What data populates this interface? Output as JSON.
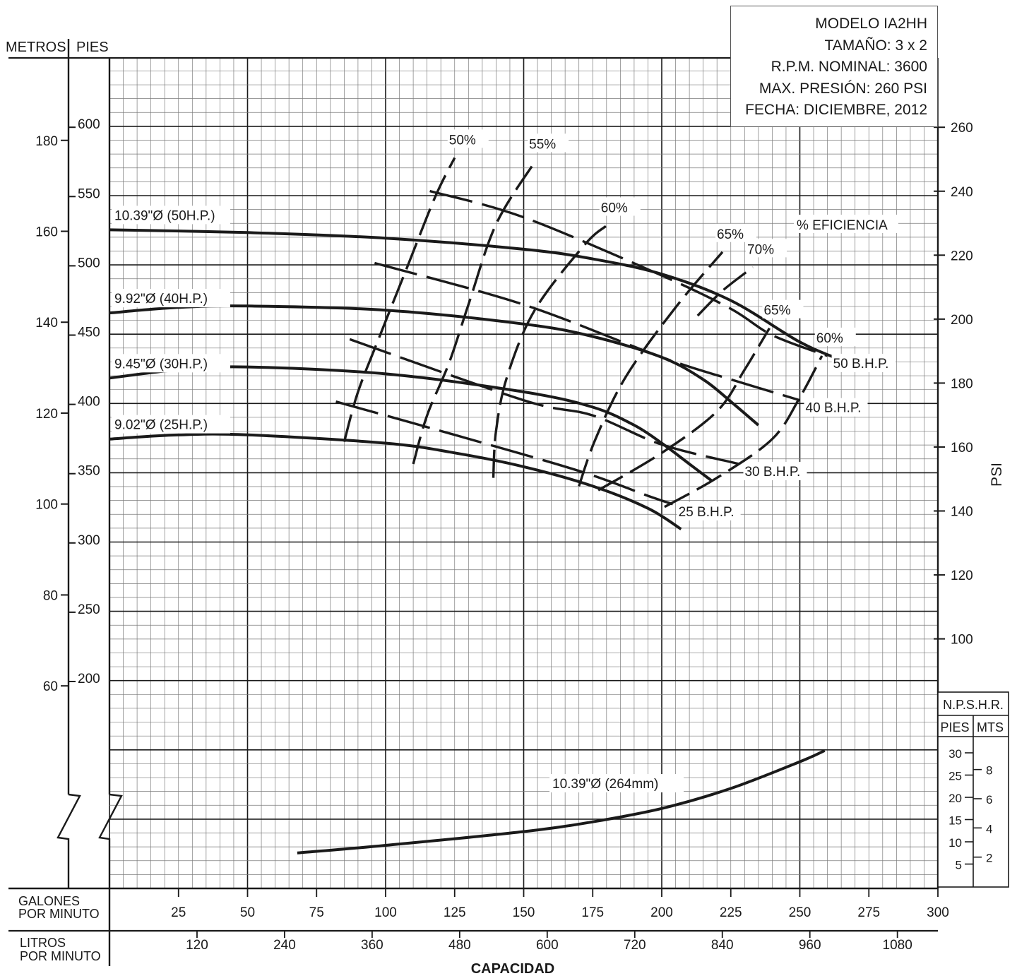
{
  "info": {
    "lines": [
      "MODELO IA2HH",
      "TAMAÑO: 3 x 2",
      "R.P.M. NOMINAL: 3600",
      "MAX. PRESIÓN: 260 PSI",
      "FECHA: DICIEMBRE, 2012"
    ]
  },
  "axes": {
    "metros_label": "METROS",
    "pies_label": "PIES",
    "psi_label": "PSI",
    "gpm_label": [
      "GALONES",
      "POR MINUTO"
    ],
    "lpm_label": [
      "LITROS",
      "POR MINUTO"
    ],
    "capacidad_label": "CAPACIDAD",
    "metros_ticks": [
      "180",
      "160",
      "140",
      "120",
      "100",
      "80",
      "60"
    ],
    "pies_ticks": [
      "600",
      "550",
      "500",
      "450",
      "400",
      "350",
      "300",
      "250",
      "200"
    ],
    "psi_ticks": [
      "260",
      "240",
      "220",
      "200",
      "180",
      "160",
      "140",
      "120",
      "100"
    ],
    "gpm_ticks": [
      "25",
      "50",
      "75",
      "100",
      "125",
      "150",
      "175",
      "200",
      "225",
      "250",
      "275",
      "300"
    ],
    "lpm_ticks": [
      "120",
      "240",
      "360",
      "480",
      "600",
      "720",
      "840",
      "960",
      "1080"
    ]
  },
  "npshr": {
    "title": "N.P.S.H.R.",
    "pies_label": "PIES",
    "mts_label": "MTS",
    "pies_ticks": [
      "30",
      "25",
      "20",
      "15",
      "10",
      "5"
    ],
    "mts_ticks": [
      "8",
      "6",
      "4",
      "2"
    ],
    "curve_label": "10.39\"Ø (264mm)"
  },
  "efficiency_title": "% EFICIENCIA",
  "colors": {
    "ink": "#1a1a1a",
    "grid_major": "#1a1a1a",
    "grid_minor": "#7a7a7a"
  },
  "chart_data": {
    "type": "line",
    "xlabel": "CAPACIDAD",
    "x_units": "GALONES POR MINUTO",
    "x_range": [
      0,
      300
    ],
    "y_units": "PIES",
    "y_range": [
      150,
      650
    ],
    "impeller_curves": [
      {
        "name": "10.39\"Ø (50H.P.)",
        "points": [
          [
            0,
            526
          ],
          [
            50,
            524
          ],
          [
            100,
            520
          ],
          [
            150,
            512
          ],
          [
            175,
            505
          ],
          [
            200,
            494
          ],
          [
            225,
            475
          ],
          [
            250,
            445
          ],
          [
            265,
            432
          ]
        ]
      },
      {
        "name": "9.92\"Ø (40H.P.)",
        "points": [
          [
            0,
            466
          ],
          [
            25,
            470
          ],
          [
            50,
            471
          ],
          [
            100,
            468
          ],
          [
            150,
            458
          ],
          [
            175,
            449
          ],
          [
            200,
            434
          ],
          [
            215,
            418
          ],
          [
            225,
            402
          ],
          [
            235,
            385
          ]
        ]
      },
      {
        "name": "9.45\"Ø (30H.P.)",
        "points": [
          [
            0,
            419
          ],
          [
            25,
            425
          ],
          [
            50,
            427
          ],
          [
            100,
            422
          ],
          [
            150,
            409
          ],
          [
            175,
            398
          ],
          [
            190,
            385
          ],
          [
            200,
            372
          ],
          [
            210,
            357
          ],
          [
            218,
            345
          ]
        ]
      },
      {
        "name": "9.02\"Ø (25H.P.)",
        "points": [
          [
            0,
            375
          ],
          [
            25,
            378
          ],
          [
            50,
            378
          ],
          [
            100,
            372
          ],
          [
            125,
            365
          ],
          [
            150,
            355
          ],
          [
            175,
            341
          ],
          [
            195,
            325
          ],
          [
            207,
            310
          ]
        ]
      }
    ],
    "bhp_lines": [
      {
        "label": "50 B.H.P.",
        "points": [
          [
            116,
            554
          ],
          [
            150,
            535
          ],
          [
            200,
            493
          ],
          [
            225,
            469
          ],
          [
            240,
            450
          ],
          [
            260,
            435
          ]
        ]
      },
      {
        "label": "40 B.H.P.",
        "points": [
          [
            96,
            502
          ],
          [
            150,
            472
          ],
          [
            200,
            434
          ],
          [
            225,
            418
          ],
          [
            250,
            403
          ]
        ]
      },
      {
        "label": "30 B.H.P.",
        "points": [
          [
            87,
            447
          ],
          [
            150,
            403
          ],
          [
            175,
            392
          ],
          [
            200,
            371
          ],
          [
            228,
            357
          ]
        ]
      },
      {
        "label": "25 B.H.P.",
        "points": [
          [
            82,
            402
          ],
          [
            125,
            378
          ],
          [
            170,
            352
          ],
          [
            195,
            334
          ],
          [
            204,
            328
          ]
        ]
      }
    ],
    "efficiency_lines": [
      {
        "label": "50%",
        "points": [
          [
            85,
            373
          ],
          [
            90,
            409
          ],
          [
            98,
            450
          ],
          [
            108,
            500
          ],
          [
            118,
            550
          ],
          [
            125,
            578
          ]
        ]
      },
      {
        "label": "55%",
        "points": [
          [
            110,
            357
          ],
          [
            115,
            392
          ],
          [
            123,
            430
          ],
          [
            130,
            472
          ],
          [
            140,
            530
          ],
          [
            154,
            575
          ]
        ]
      },
      {
        "label": "60%",
        "points": [
          [
            139,
            347
          ],
          [
            140,
            381
          ],
          [
            144,
            420
          ],
          [
            154,
            468
          ],
          [
            172,
            515
          ],
          [
            180,
            529
          ]
        ]
      },
      {
        "label": "65%",
        "points": [
          [
            170,
            341
          ],
          [
            176,
            375
          ],
          [
            187,
            420
          ],
          [
            205,
            470
          ],
          [
            222,
            510
          ]
        ]
      },
      {
        "label": "70%",
        "points": [
          [
            213,
            464
          ],
          [
            222,
            482
          ],
          [
            233,
            499
          ]
        ]
      },
      {
        "label": "65%",
        "points": [
          [
            177,
            338
          ],
          [
            200,
            365
          ],
          [
            220,
            395
          ],
          [
            230,
            425
          ],
          [
            239,
            455
          ]
        ]
      },
      {
        "label": "60%",
        "points": [
          [
            201,
            326
          ],
          [
            220,
            347
          ],
          [
            240,
            375
          ],
          [
            250,
            405
          ],
          [
            258,
            435
          ]
        ]
      }
    ],
    "npshr_curve": {
      "name": "10.39\"Ø (264mm)",
      "y_units": "PIES",
      "points": [
        [
          68,
          7.5
        ],
        [
          100,
          9.2
        ],
        [
          150,
          12.3
        ],
        [
          175,
          14.5
        ],
        [
          200,
          17.5
        ],
        [
          225,
          22.0
        ],
        [
          250,
          28.0
        ],
        [
          259,
          30.5
        ]
      ]
    }
  }
}
